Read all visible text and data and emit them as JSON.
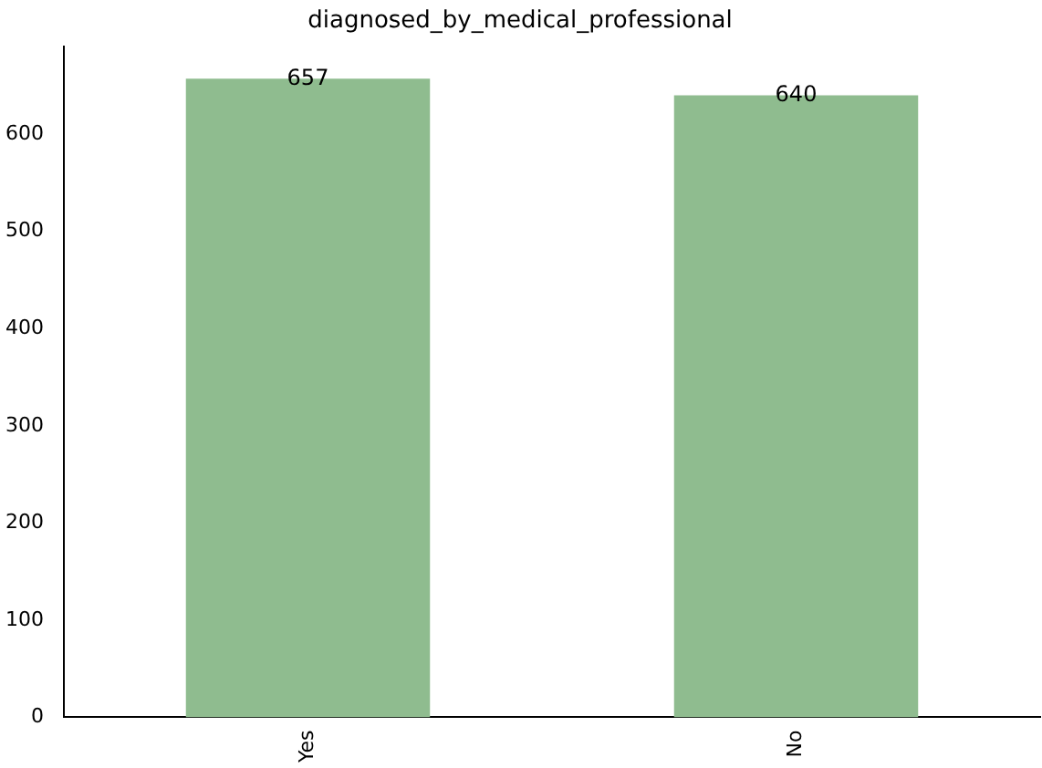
{
  "chart_data": {
    "type": "bar",
    "title": "diagnosed_by_medical_professional",
    "categories": [
      "Yes",
      "No"
    ],
    "values": [
      657,
      640
    ],
    "color": "#8fbc8f",
    "ylim": [
      0,
      690
    ],
    "yticks": [
      0,
      100,
      200,
      300,
      400,
      500,
      600
    ],
    "grid": false,
    "legend": false,
    "data_labels": true
  }
}
